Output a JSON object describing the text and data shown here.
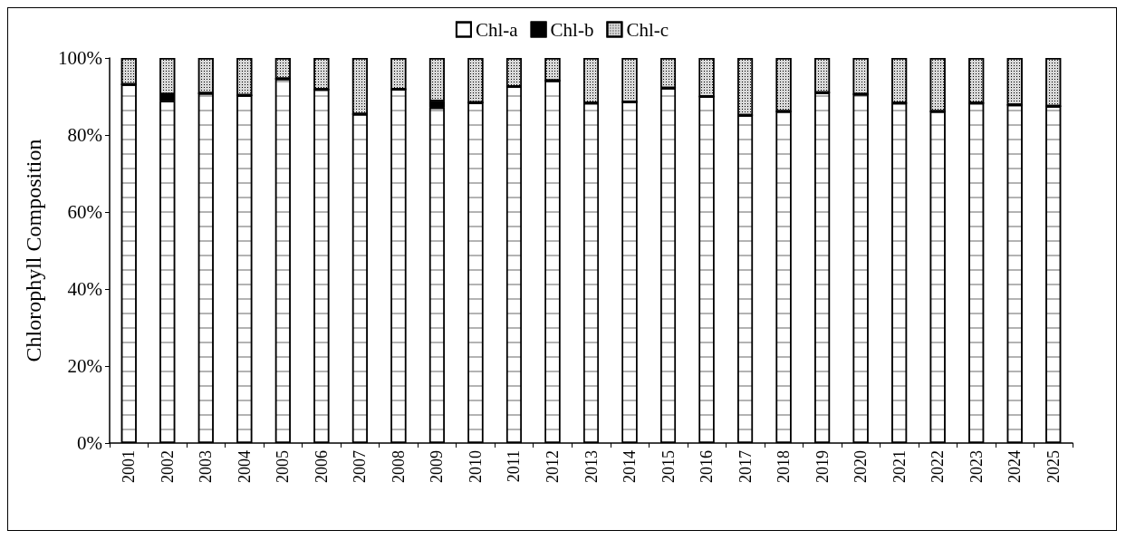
{
  "chart_data": {
    "type": "bar",
    "stacked": true,
    "ylabel": "Chlorophyll Composition",
    "legend": "top",
    "grid": false,
    "categories": [
      "2001",
      "2002",
      "2003",
      "2004",
      "2005",
      "2006",
      "2007",
      "2008",
      "2009",
      "2010",
      "2011",
      "2012",
      "2013",
      "2014",
      "2015",
      "2016",
      "2017",
      "2018",
      "2019",
      "2020",
      "2021",
      "2022",
      "2023",
      "2024",
      "2025"
    ],
    "ylim": [
      0,
      100
    ],
    "yticks": [
      {
        "value": 0,
        "label": "0%"
      },
      {
        "value": 20,
        "label": "20%"
      },
      {
        "value": 40,
        "label": "40%"
      },
      {
        "value": 60,
        "label": "60%"
      },
      {
        "value": 80,
        "label": "80%"
      },
      {
        "value": 100,
        "label": "100%"
      }
    ],
    "series": [
      {
        "name": "Chl-a",
        "color": "#ffffff",
        "values": [
          93.1,
          88.8,
          90.8,
          90.3,
          94.6,
          91.8,
          85.4,
          91.9,
          87.1,
          88.4,
          92.6,
          94.1,
          88.3,
          88.6,
          92.2,
          90.0,
          85.1,
          86.1,
          91.0,
          90.6,
          88.3,
          86.1,
          88.3,
          87.8,
          87.5
        ]
      },
      {
        "name": "Chl-b",
        "color": "#000000",
        "values": [
          0,
          1.8,
          0,
          0,
          0,
          0,
          0,
          0,
          1.7,
          0,
          0,
          0,
          0,
          0,
          0,
          0,
          0,
          0,
          0,
          0,
          0,
          0,
          0,
          0,
          0
        ]
      },
      {
        "name": "Chl-c",
        "color": "#d9d9d9",
        "values": [
          6.9,
          9.4,
          9.2,
          9.7,
          5.4,
          8.2,
          14.6,
          8.1,
          11.2,
          11.6,
          7.4,
          5.9,
          11.7,
          11.4,
          7.8,
          10.0,
          14.9,
          13.9,
          9.0,
          9.4,
          11.7,
          13.9,
          11.7,
          12.2,
          12.5
        ]
      }
    ]
  }
}
